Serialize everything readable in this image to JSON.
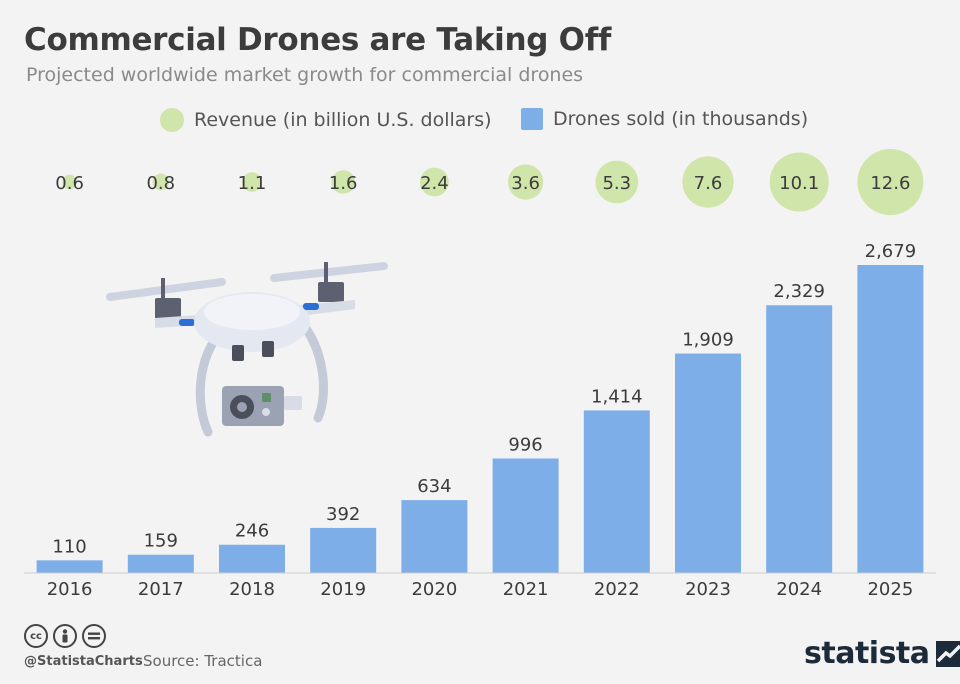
{
  "header": {
    "title": "Commercial Drones are Taking Off",
    "subtitle": "Projected worldwide market growth for commercial drones"
  },
  "legend": {
    "revenue_label": "Revenue (in billion U.S. dollars)",
    "drones_label": "Drones sold (in thousands)"
  },
  "colors": {
    "bar": "#7eaee8",
    "bubble": "#cfe5a9",
    "text": "#3c3c3c",
    "background": "#f3f3f3",
    "drone_illustration": "drone-illustration"
  },
  "chart_data": {
    "type": "bar",
    "categories": [
      "2016",
      "2017",
      "2018",
      "2019",
      "2020",
      "2021",
      "2022",
      "2023",
      "2024",
      "2025"
    ],
    "series": [
      {
        "name": "Drones sold (in thousands)",
        "values": [
          110,
          159,
          246,
          392,
          634,
          996,
          1414,
          1909,
          2329,
          2679
        ],
        "labels": [
          "110",
          "159",
          "246",
          "392",
          "634",
          "996",
          "1,414",
          "1,909",
          "2,329",
          "2,679"
        ],
        "mark": "bar"
      },
      {
        "name": "Revenue (in billion U.S. dollars)",
        "values": [
          0.6,
          0.8,
          1.1,
          1.6,
          2.4,
          3.6,
          5.3,
          7.6,
          10.1,
          12.6
        ],
        "labels": [
          "0.6",
          "0.8",
          "1.1",
          "1.6",
          "2.4",
          "3.6",
          "5.3",
          "7.6",
          "10.1",
          "12.6"
        ],
        "mark": "bubble"
      }
    ],
    "ylim": [
      0,
      2679
    ],
    "grid": false,
    "legend_position": "top-center"
  },
  "footer": {
    "handle": "@StatistaCharts",
    "source": "Source: Tractica",
    "brand": "statista",
    "license_icons": [
      "cc-icon",
      "by-icon",
      "nd-icon"
    ]
  }
}
